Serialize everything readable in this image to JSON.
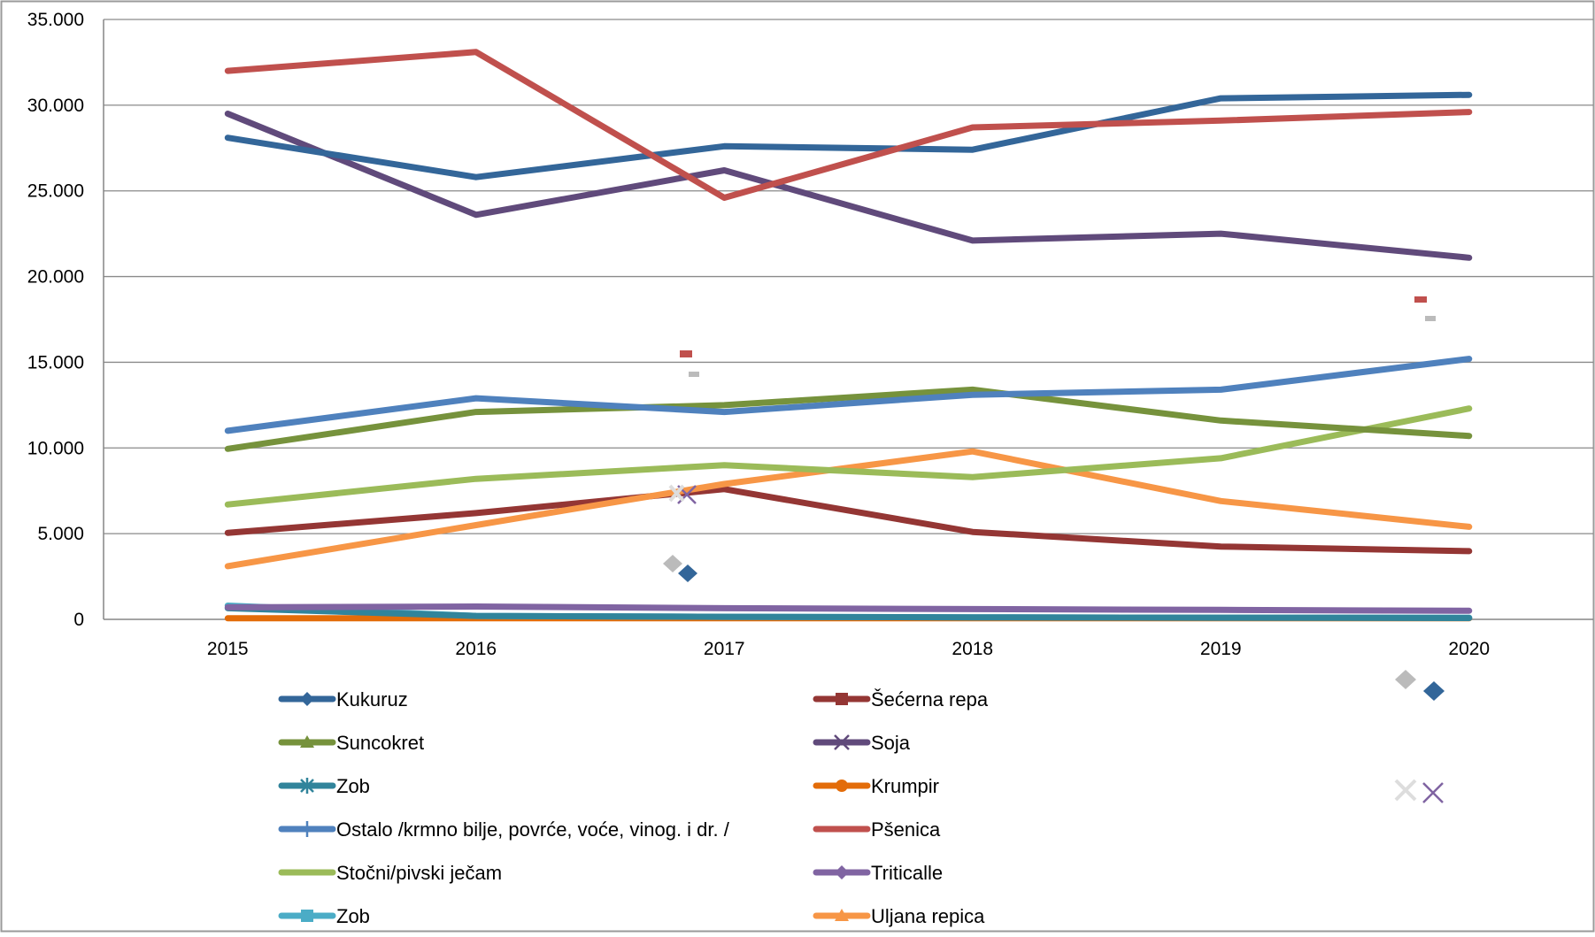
{
  "chart_data": {
    "type": "line",
    "categories": [
      "2015",
      "2016",
      "2017",
      "2018",
      "2019",
      "2020"
    ],
    "y_tick_labels": [
      "0",
      "5.000",
      "10.000",
      "15.000",
      "20.000",
      "25.000",
      "30.000",
      "35.000"
    ],
    "ylim": [
      0,
      35000
    ],
    "grid": true,
    "legend_position": "bottom",
    "series": [
      {
        "name": "Kukuruz",
        "color": "#336699",
        "marker": "diamond",
        "values": [
          28100,
          25800,
          27600,
          27400,
          30400,
          30600
        ]
      },
      {
        "name": "Šećerna repa",
        "color": "#943634",
        "marker": "square",
        "values": [
          5050,
          6200,
          7600,
          5100,
          4250,
          3980
        ]
      },
      {
        "name": "Suncokret",
        "color": "#76923C",
        "marker": "triangle",
        "values": [
          9950,
          12100,
          12500,
          13400,
          11600,
          10700
        ]
      },
      {
        "name": "Soja",
        "color": "#604A7B",
        "marker": "x",
        "values": [
          29500,
          23600,
          26200,
          22100,
          22500,
          21100
        ]
      },
      {
        "name": "Zob",
        "color": "#31849B",
        "marker": "star",
        "values": [
          650,
          200,
          150,
          120,
          100,
          80
        ]
      },
      {
        "name": "Krumpir",
        "color": "#E36C09",
        "marker": "circle",
        "values": [
          60,
          60,
          60,
          60,
          60,
          60
        ]
      },
      {
        "name": "Ostalo /krmno bilje, povrće, voće, vinog. i dr.  /",
        "color": "#4F81BD",
        "marker": "plus",
        "values": [
          11000,
          12900,
          12100,
          13100,
          13400,
          15200
        ]
      },
      {
        "name": "Pšenica",
        "color": "#C0504D",
        "marker": "none",
        "values": [
          32000,
          33100,
          24600,
          28700,
          29100,
          29600
        ]
      },
      {
        "name": "Stočni/pivski ječam",
        "color": "#9BBB59",
        "marker": "none",
        "values": [
          6700,
          8200,
          9000,
          8300,
          9400,
          12300
        ]
      },
      {
        "name": "Triticalle",
        "color": "#8064A2",
        "marker": "diamond",
        "values": [
          700,
          750,
          650,
          600,
          550,
          500
        ]
      },
      {
        "name": "Zob",
        "color": "#4BACC6",
        "marker": "square",
        "values": [
          800,
          200,
          150,
          120,
          100,
          100
        ]
      },
      {
        "name": "Uljana repica",
        "color": "#F79646",
        "marker": "triangle",
        "values": [
          3100,
          5500,
          7900,
          9800,
          6900,
          5400
        ]
      }
    ]
  }
}
